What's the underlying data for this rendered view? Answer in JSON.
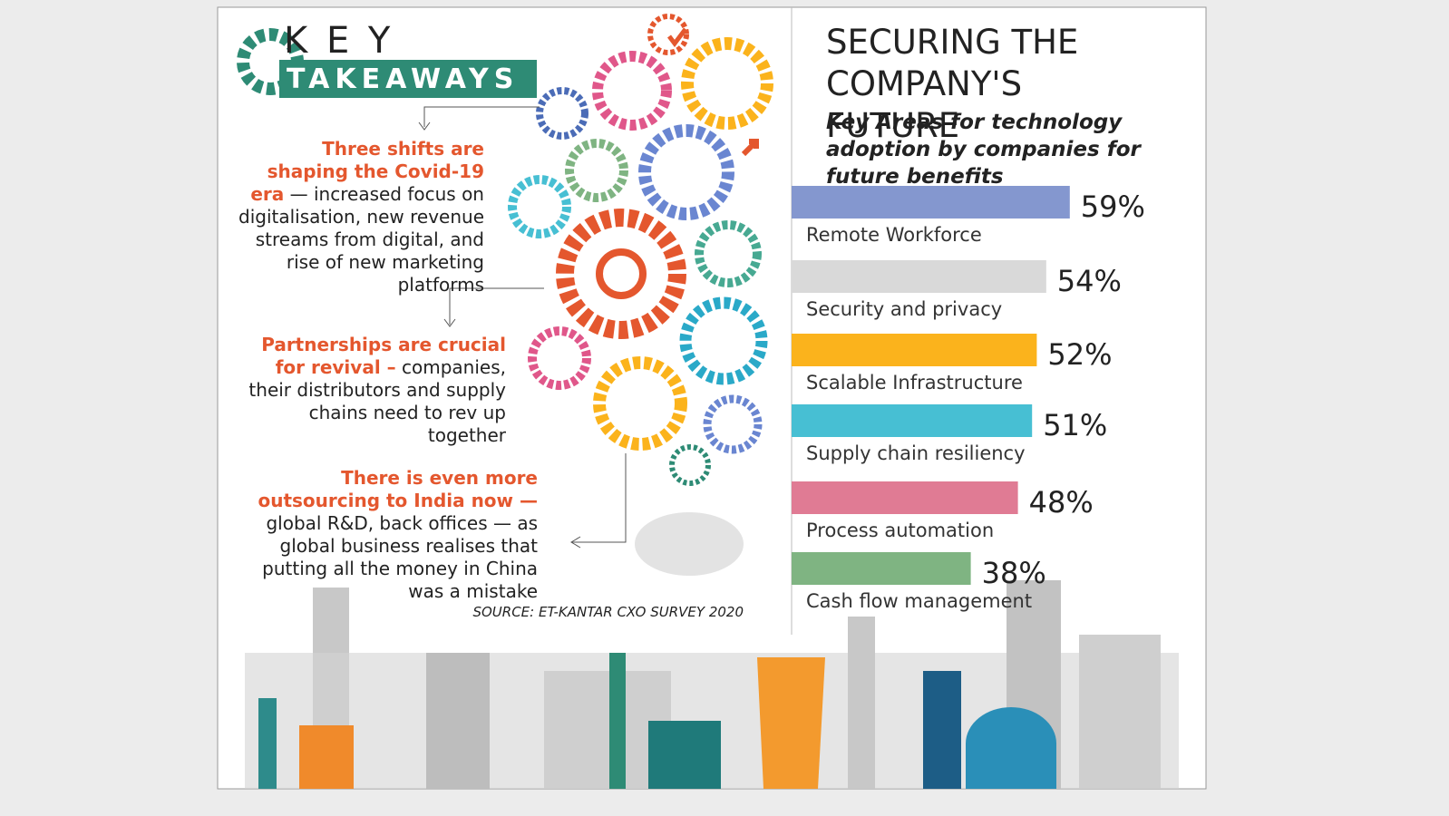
{
  "header": {
    "key": "K E Y",
    "takeaways": "TAKEAWAYS"
  },
  "takeaways": [
    {
      "lead": "Three shifts are shaping the Covid-19 era",
      "body": "— increased focus on digitalisation, new revenue streams from digital, and rise of new marketing platforms"
    },
    {
      "lead": "Partnerships are crucial for revival –",
      "body": "companies, their distributors and supply chains need to rev up together"
    },
    {
      "lead": "There is even more outsourcing to India now —",
      "body": "global R&D, back offices — as global business realises that putting all the money in China was a mistake"
    }
  ],
  "source": "SOURCE: ET-KANTAR CXO SURVEY 2020",
  "chart_data": {
    "type": "bar",
    "orientation": "horizontal",
    "title": "SECURING THE COMPANY'S FUTURE",
    "subtitle": "Key Areas for technology adoption by companies for future benefits",
    "categories": [
      "Remote Workforce",
      "Security and privacy",
      "Scalable Infrastructure",
      "Supply chain resiliency",
      "Process automation",
      "Cash flow management"
    ],
    "values": [
      59,
      54,
      52,
      51,
      48,
      38
    ],
    "value_labels": [
      "59%",
      "54%",
      "52%",
      "51%",
      "48%",
      "38%"
    ],
    "colors": [
      "#8497cf",
      "#d9d9d9",
      "#fbb31c",
      "#47bfd3",
      "#e07b94",
      "#7fb482"
    ]
  }
}
